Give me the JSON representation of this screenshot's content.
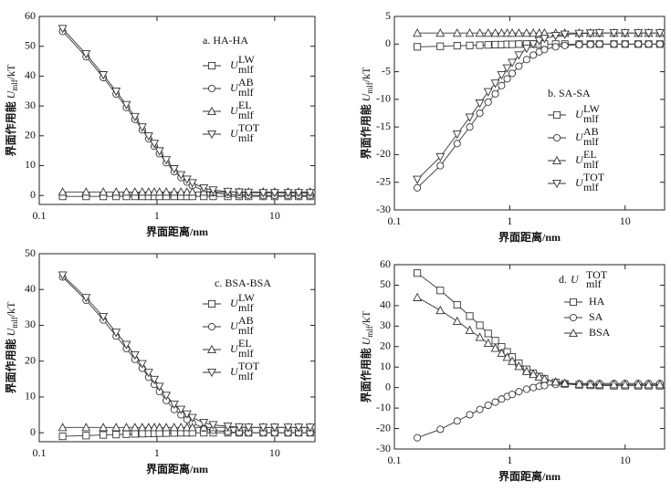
{
  "chart_data": [
    {
      "type": "line",
      "label": "a. HA-HA",
      "xlabel": "界面距离/nm",
      "ylabel": "界面作用能",
      "ylabel_var": "U",
      "ylabel_sub": "mlf",
      "ylabel_unit": "/kT",
      "legend_var": "U",
      "legend_sub": "mlf",
      "xscale": "log",
      "xlim": [
        0.1,
        22
      ],
      "xticks": [
        0.1,
        1,
        10
      ],
      "ylim": [
        -3,
        60
      ],
      "yticks": [
        0,
        10,
        20,
        30,
        40,
        50,
        60
      ],
      "x": [
        0.158,
        0.25,
        0.35,
        0.45,
        0.55,
        0.65,
        0.75,
        0.85,
        0.95,
        1.05,
        1.2,
        1.4,
        1.6,
        1.8,
        2,
        2.5,
        3,
        4,
        5,
        6,
        8,
        10,
        13,
        16,
        20
      ],
      "series": [
        {
          "name": "LW",
          "marker": "square",
          "color": "#333333",
          "values": [
            -0.3,
            -0.3,
            -0.3,
            -0.3,
            -0.3,
            -0.3,
            -0.3,
            -0.3,
            -0.3,
            -0.3,
            -0.3,
            -0.3,
            -0.3,
            -0.3,
            -0.3,
            -0.3,
            -0.3,
            -0.3,
            -0.3,
            -0.3,
            -0.3,
            -0.3,
            -0.3,
            -0.3,
            -0.3
          ]
        },
        {
          "name": "AB",
          "marker": "circle",
          "color": "#333333",
          "values": [
            55,
            46.5,
            39.5,
            34,
            29.5,
            25.5,
            22,
            19,
            16.5,
            14,
            11,
            8,
            6,
            4.5,
            3.3,
            1.6,
            0.9,
            0.4,
            0.2,
            0.1,
            0,
            0,
            0,
            0,
            0
          ]
        },
        {
          "name": "EL",
          "marker": "triangle-up",
          "color": "#333333",
          "values": [
            1.2,
            1.2,
            1.2,
            1.2,
            1.2,
            1.2,
            1.2,
            1.2,
            1.2,
            1.2,
            1.2,
            1.2,
            1.2,
            1.2,
            1.2,
            1.2,
            1.2,
            1.2,
            1.2,
            1.2,
            1.2,
            1.2,
            1.2,
            1.2,
            1.2
          ]
        },
        {
          "name": "TOT",
          "marker": "triangle-down",
          "color": "#333333",
          "values": [
            55.9,
            47.4,
            40.4,
            34.9,
            30.4,
            26.4,
            22.9,
            19.9,
            17.4,
            14.9,
            11.9,
            8.9,
            6.9,
            5.4,
            4.2,
            2.5,
            1.8,
            1.3,
            1.1,
            1,
            0.9,
            0.9,
            0.9,
            0.9,
            0.9
          ]
        }
      ]
    },
    {
      "type": "line",
      "label": "b. SA-SA",
      "xlabel": "界面距离/nm",
      "ylabel": "界面作用能",
      "ylabel_var": "U",
      "ylabel_sub": "mlf",
      "ylabel_unit": "/kT",
      "legend_var": "U",
      "legend_sub": "mlf",
      "xscale": "log",
      "xlim": [
        0.1,
        22
      ],
      "xticks": [
        0.1,
        1,
        10
      ],
      "ylim": [
        -30,
        5
      ],
      "yticks": [
        -30,
        -25,
        -20,
        -15,
        -10,
        -5,
        0,
        5
      ],
      "x": [
        0.158,
        0.25,
        0.35,
        0.45,
        0.55,
        0.65,
        0.75,
        0.85,
        0.95,
        1.05,
        1.2,
        1.4,
        1.6,
        1.8,
        2,
        2.5,
        3,
        4,
        5,
        6,
        8,
        10,
        13,
        16,
        20
      ],
      "series": [
        {
          "name": "LW",
          "marker": "square",
          "color": "#333333",
          "values": [
            -0.5,
            -0.4,
            -0.3,
            -0.25,
            -0.2,
            -0.15,
            -0.1,
            -0.1,
            -0.05,
            -0.05,
            0,
            0,
            0,
            0,
            0,
            0,
            0,
            0,
            0,
            0,
            0,
            0,
            0,
            0,
            0
          ]
        },
        {
          "name": "AB",
          "marker": "circle",
          "color": "#333333",
          "values": [
            -26,
            -22,
            -18,
            -15,
            -12.5,
            -10.5,
            -9,
            -7.5,
            -6.3,
            -5.3,
            -4,
            -2.8,
            -2,
            -1.4,
            -1,
            -0.5,
            -0.25,
            -0.1,
            -0.05,
            0,
            0,
            0,
            0,
            0,
            0
          ]
        },
        {
          "name": "EL",
          "marker": "triangle-up",
          "color": "#333333",
          "values": [
            2,
            2,
            2,
            2,
            2,
            2,
            2,
            2,
            2,
            2,
            2,
            2,
            2,
            2,
            2,
            2,
            2,
            2,
            2,
            2,
            2,
            2,
            2,
            2,
            2
          ]
        },
        {
          "name": "TOT",
          "marker": "triangle-down",
          "color": "#333333",
          "values": [
            -24.5,
            -20.4,
            -16.3,
            -13.25,
            -10.7,
            -8.65,
            -7.1,
            -5.6,
            -4.35,
            -3.35,
            -2,
            -0.8,
            0,
            0.6,
            1,
            1.5,
            1.75,
            1.9,
            1.95,
            2,
            2,
            2,
            2,
            2,
            2
          ]
        }
      ]
    },
    {
      "type": "line",
      "label": "c. BSA-BSA",
      "xlabel": "界面距离/nm",
      "ylabel": "界面作用能",
      "ylabel_var": "U",
      "ylabel_sub": "mlf",
      "ylabel_unit": "/kT",
      "legend_var": "U",
      "legend_sub": "mlf",
      "xscale": "log",
      "xlim": [
        0.1,
        22
      ],
      "xticks": [
        0.1,
        1,
        10
      ],
      "ylim": [
        -2.5,
        50
      ],
      "yticks": [
        0,
        10,
        20,
        30,
        40,
        50
      ],
      "x": [
        0.158,
        0.25,
        0.35,
        0.45,
        0.55,
        0.65,
        0.75,
        0.85,
        0.95,
        1.05,
        1.2,
        1.4,
        1.6,
        1.8,
        2,
        2.5,
        3,
        4,
        5,
        6,
        8,
        10,
        13,
        16,
        20
      ],
      "series": [
        {
          "name": "LW",
          "marker": "square",
          "color": "#333333",
          "values": [
            -1,
            -0.8,
            -0.6,
            -0.5,
            -0.4,
            -0.3,
            -0.25,
            -0.2,
            -0.15,
            -0.1,
            -0.1,
            -0.05,
            0,
            0,
            0,
            0,
            0,
            0,
            0,
            0,
            0,
            0,
            0,
            0,
            0
          ]
        },
        {
          "name": "AB",
          "marker": "circle",
          "color": "#333333",
          "values": [
            43.5,
            37,
            31.5,
            27,
            23.5,
            20.5,
            18,
            15.5,
            13.5,
            11.5,
            9,
            6.5,
            5,
            3.7,
            2.7,
            1.3,
            0.7,
            0.3,
            0.1,
            0,
            0,
            0,
            0,
            0,
            0
          ]
        },
        {
          "name": "EL",
          "marker": "triangle-up",
          "color": "#333333",
          "values": [
            1.5,
            1.5,
            1.5,
            1.5,
            1.5,
            1.5,
            1.5,
            1.5,
            1.5,
            1.5,
            1.5,
            1.5,
            1.5,
            1.5,
            1.5,
            1.5,
            1.5,
            1.5,
            1.5,
            1.5,
            1.5,
            1.5,
            1.5,
            1.5,
            1.5
          ]
        },
        {
          "name": "TOT",
          "marker": "triangle-down",
          "color": "#333333",
          "values": [
            44,
            37.7,
            32.4,
            28,
            24.6,
            21.7,
            19.25,
            16.8,
            14.85,
            12.9,
            10.4,
            7.95,
            6.5,
            5.2,
            4.2,
            2.8,
            2.2,
            1.8,
            1.6,
            1.5,
            1.5,
            1.5,
            1.5,
            1.5,
            1.5
          ]
        }
      ]
    },
    {
      "type": "line",
      "label": "d.",
      "label_var": "U",
      "label_sub": "mlf",
      "label_sup": "TOT",
      "xlabel": "界面距离/nm",
      "ylabel": "界面作用能",
      "ylabel_var": "U",
      "ylabel_sub": "mlf",
      "ylabel_unit": "/kT",
      "xscale": "log",
      "xlim": [
        0.1,
        22
      ],
      "xticks": [
        0.1,
        1,
        10
      ],
      "ylim": [
        -30,
        60
      ],
      "yticks": [
        -30,
        -20,
        -10,
        0,
        10,
        20,
        30,
        40,
        50,
        60
      ],
      "x": [
        0.158,
        0.25,
        0.35,
        0.45,
        0.55,
        0.65,
        0.75,
        0.85,
        0.95,
        1.05,
        1.2,
        1.4,
        1.6,
        1.8,
        2,
        2.5,
        3,
        4,
        5,
        6,
        8,
        10,
        13,
        16,
        20
      ],
      "series": [
        {
          "name": "HA",
          "marker": "square",
          "color": "#333333",
          "values": [
            55.9,
            47.4,
            40.4,
            34.9,
            30.4,
            26.4,
            22.9,
            19.9,
            17.4,
            14.9,
            11.9,
            8.9,
            6.9,
            5.4,
            4.2,
            2.5,
            1.8,
            1.3,
            1.1,
            1,
            0.9,
            0.9,
            0.9,
            0.9,
            0.9
          ]
        },
        {
          "name": "SA",
          "marker": "circle",
          "color": "#333333",
          "values": [
            -24.5,
            -20.4,
            -16.3,
            -13.25,
            -10.7,
            -8.65,
            -7.1,
            -5.6,
            -4.35,
            -3.35,
            -2,
            -0.8,
            0,
            0.6,
            1,
            1.5,
            1.75,
            1.9,
            1.95,
            2,
            2,
            2,
            2,
            2,
            2
          ]
        },
        {
          "name": "BSA",
          "marker": "triangle-up",
          "color": "#333333",
          "values": [
            44,
            37.7,
            32.4,
            28,
            24.6,
            21.7,
            19.25,
            16.8,
            14.85,
            12.9,
            10.4,
            7.95,
            6.5,
            5.2,
            4.2,
            2.8,
            2.2,
            1.8,
            1.6,
            1.5,
            1.5,
            1.5,
            1.5,
            1.5,
            1.5
          ]
        }
      ]
    }
  ]
}
